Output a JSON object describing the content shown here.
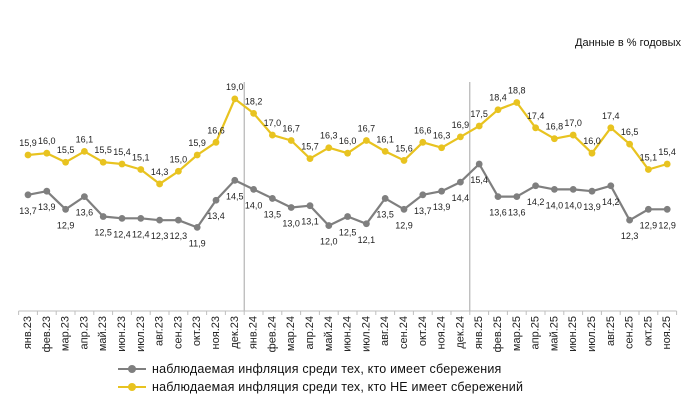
{
  "chart_data": {
    "type": "line",
    "units_label": "Данные в % годовых",
    "categories": [
      "янв.23",
      "фев.23",
      "мар.23",
      "апр.23",
      "май.23",
      "июн.23",
      "июл.23",
      "авг.23",
      "сен.23",
      "окт.23",
      "ноя.23",
      "дек.23",
      "янв.24",
      "фев.24",
      "мар.24",
      "апр.24",
      "май.24",
      "июн.24",
      "июл.24",
      "авг.24",
      "сен.24",
      "окт.24",
      "ноя.24",
      "дек.24",
      "янв.25",
      "фев.25",
      "мар.25",
      "апр.25",
      "май.25",
      "июн.25",
      "июл.25",
      "авг.25",
      "сен.25",
      "окт.25",
      "ноя.25"
    ],
    "series": [
      {
        "name": "наблюдаемая инфляция  среди тех, кто имеет сбережения",
        "color": "#7f7f7f",
        "values": [
          13.7,
          13.9,
          12.9,
          13.6,
          12.5,
          12.4,
          12.4,
          12.3,
          12.3,
          11.9,
          13.4,
          14.5,
          14.0,
          13.5,
          13.0,
          13.1,
          12.0,
          12.5,
          12.1,
          13.5,
          12.9,
          13.7,
          13.9,
          14.4,
          15.4,
          13.6,
          13.6,
          14.2,
          14.0,
          14.0,
          13.9,
          14.2,
          12.3,
          12.9,
          12.9
        ]
      },
      {
        "name": "наблюдаемая инфляция  среди тех, кто НЕ имеет сбережений",
        "color": "#e8c320",
        "values": [
          15.9,
          16.0,
          15.5,
          16.1,
          15.5,
          15.4,
          15.1,
          14.3,
          15.0,
          15.9,
          16.6,
          19.0,
          18.2,
          17.0,
          16.7,
          15.7,
          16.3,
          16.0,
          16.7,
          16.1,
          15.6,
          16.6,
          16.3,
          16.9,
          17.5,
          18.4,
          18.8,
          17.4,
          16.8,
          17.0,
          16.0,
          17.4,
          16.5,
          15.1,
          15.4
        ]
      }
    ],
    "labels": {
      "series0": [
        "13,7",
        "13,9",
        "12,9",
        "13,6",
        "12,5",
        "12,4",
        "12,4",
        "12,3",
        "12,3",
        "11,9",
        "13,4",
        "14,5",
        "14,0",
        "13,5",
        "13,0",
        "13,1",
        "12,0",
        "12,5",
        "12,1",
        "13,5",
        "12,9",
        "13,7",
        "13,9",
        "14,4",
        "15,4",
        "13,6",
        "13,6",
        "14,2",
        "14,0",
        "14,0",
        "13,9",
        "14,2",
        "12,3",
        "12,9",
        "12,9"
      ],
      "series1": [
        "15,9",
        "16,0",
        "15,5",
        "16,1",
        "15,5",
        "15,4",
        "15,1",
        "14,3",
        "15,0",
        "15,9",
        "16,6",
        "19,0",
        "18,2",
        "17,0",
        "16,7",
        "15,7",
        "16,3",
        "16,0",
        "16,7",
        "16,1",
        "15,6",
        "16,6",
        "16,3",
        "16,9",
        "17,5",
        "18,4",
        "18,8",
        "17,4",
        "16,8",
        "17,0",
        "16,0",
        "17,4",
        "16,5",
        "15,1",
        "15,4"
      ]
    },
    "ylim": [
      8,
      19.6
    ],
    "year_separators_after": [
      "дек.23",
      "дек.24"
    ],
    "grid": false,
    "legend_position": "bottom"
  }
}
